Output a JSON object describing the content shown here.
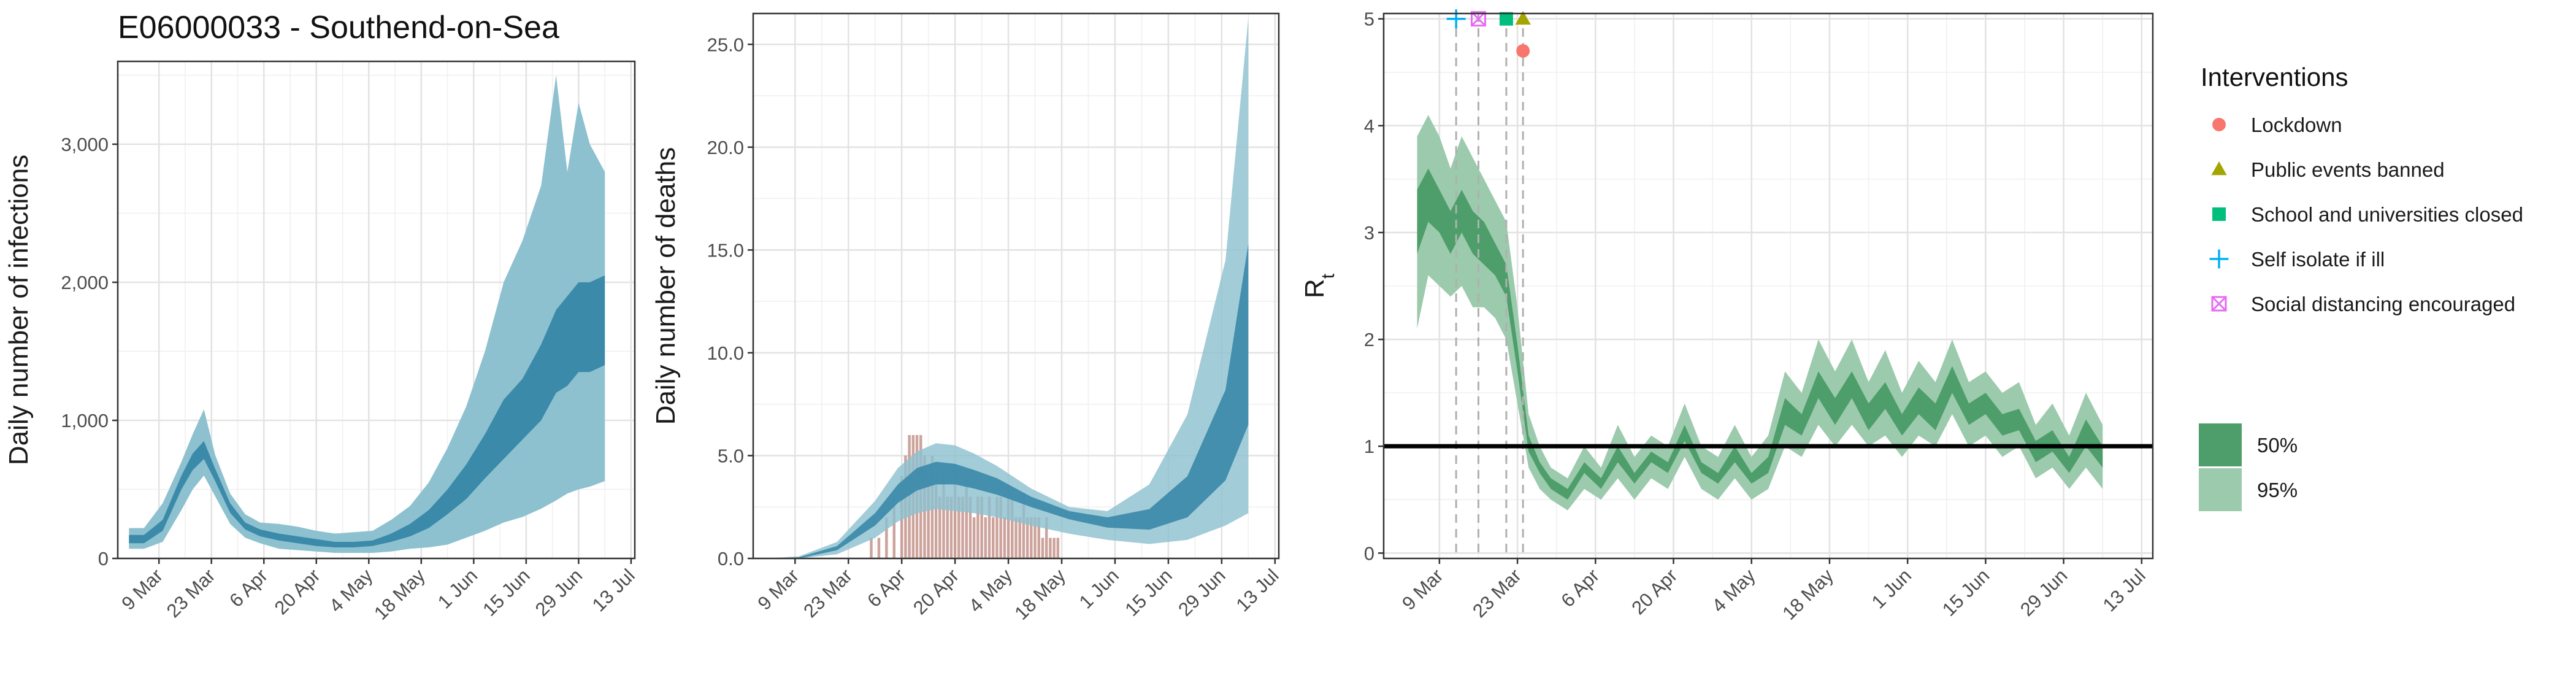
{
  "figure": {
    "title": "E06000033 - Southend-on-Sea"
  },
  "colors": {
    "infection_band_95": "#8dc1d0",
    "infection_band_50": "#3b8aa9",
    "deaths_band_95": "#8dc1d0",
    "deaths_band_50": "#3b8aa9",
    "observed_bars": "#c4938b",
    "rt_band_95": "#9ccaac",
    "rt_band_50": "#4d9e6a",
    "lockdown": "#f8766d",
    "public_events": "#a3a500",
    "schools": "#00bf7d",
    "self_isolate": "#00b0f6",
    "social_distancing": "#e76bf3"
  },
  "chart_data": [
    {
      "type": "area",
      "title": "E06000033 - Southend-on-Sea",
      "xlabel": "",
      "ylabel": "Daily number of infections",
      "x_tick_labels": [
        "9 Mar",
        "23 Mar",
        "6 Apr",
        "20 Apr",
        "4 May",
        "18 May",
        "1 Jun",
        "15 Jun",
        "29 Jun",
        "13 Jul"
      ],
      "x_range": [
        "2020-02-27",
        "2020-07-14"
      ],
      "ylim": [
        0,
        3600
      ],
      "y_ticks": [
        0,
        1000,
        2000,
        3000
      ],
      "y_tick_labels": [
        "0",
        "1,000",
        "2,000",
        "3,000"
      ],
      "grid": true,
      "series": [
        {
          "name": "95%",
          "x": [
            "2020-03-01",
            "2020-03-05",
            "2020-03-10",
            "2020-03-15",
            "2020-03-18",
            "2020-03-21",
            "2020-03-24",
            "2020-03-28",
            "2020-04-01",
            "2020-04-05",
            "2020-04-10",
            "2020-04-15",
            "2020-04-20",
            "2020-04-25",
            "2020-04-30",
            "2020-05-05",
            "2020-05-10",
            "2020-05-15",
            "2020-05-20",
            "2020-05-25",
            "2020-05-30",
            "2020-06-04",
            "2020-06-09",
            "2020-06-14",
            "2020-06-19",
            "2020-06-23",
            "2020-06-26",
            "2020-06-29",
            "2020-07-02",
            "2020-07-06"
          ],
          "lower": [
            70,
            70,
            120,
            350,
            500,
            600,
            450,
            250,
            150,
            110,
            70,
            60,
            50,
            40,
            40,
            40,
            50,
            70,
            80,
            100,
            150,
            200,
            260,
            300,
            360,
            420,
            470,
            500,
            520,
            560
          ],
          "upper": [
            220,
            220,
            400,
            700,
            900,
            1080,
            750,
            470,
            320,
            260,
            250,
            230,
            200,
            180,
            190,
            200,
            280,
            380,
            550,
            800,
            1100,
            1500,
            2000,
            2300,
            2700,
            3500,
            2800,
            3300,
            3000,
            2800
          ]
        },
        {
          "name": "50%",
          "x": [
            "2020-03-01",
            "2020-03-05",
            "2020-03-10",
            "2020-03-15",
            "2020-03-18",
            "2020-03-21",
            "2020-03-24",
            "2020-03-28",
            "2020-04-01",
            "2020-04-05",
            "2020-04-10",
            "2020-04-15",
            "2020-04-20",
            "2020-04-25",
            "2020-04-30",
            "2020-05-05",
            "2020-05-10",
            "2020-05-15",
            "2020-05-20",
            "2020-05-25",
            "2020-05-30",
            "2020-06-04",
            "2020-06-09",
            "2020-06-14",
            "2020-06-19",
            "2020-06-23",
            "2020-06-26",
            "2020-06-29",
            "2020-07-02",
            "2020-07-06"
          ],
          "lower": [
            110,
            110,
            200,
            500,
            640,
            720,
            560,
            330,
            210,
            160,
            130,
            110,
            90,
            80,
            80,
            90,
            120,
            160,
            220,
            320,
            430,
            580,
            720,
            860,
            1000,
            1200,
            1250,
            1350,
            1350,
            1400
          ],
          "upper": [
            170,
            170,
            280,
            600,
            760,
            850,
            650,
            400,
            260,
            210,
            180,
            160,
            140,
            120,
            120,
            130,
            180,
            250,
            350,
            500,
            680,
            900,
            1150,
            1300,
            1550,
            1800,
            1900,
            2000,
            2000,
            2050
          ]
        }
      ]
    },
    {
      "type": "area",
      "title": "",
      "xlabel": "",
      "ylabel": "Daily number of deaths",
      "x_tick_labels": [
        "9 Mar",
        "23 Mar",
        "6 Apr",
        "20 Apr",
        "4 May",
        "18 May",
        "1 Jun",
        "15 Jun",
        "29 Jun",
        "13 Jul"
      ],
      "x_range": [
        "2020-02-27",
        "2020-07-14"
      ],
      "ylim": [
        0,
        26.5
      ],
      "y_ticks": [
        0,
        5,
        10,
        15,
        20,
        25
      ],
      "y_tick_labels": [
        "0.0",
        "5.0",
        "10.0",
        "15.0",
        "20.0",
        "25.0"
      ],
      "grid": true,
      "series": [
        {
          "name": "95%",
          "x": [
            "2020-03-01",
            "2020-03-10",
            "2020-03-20",
            "2020-03-30",
            "2020-04-05",
            "2020-04-10",
            "2020-04-15",
            "2020-04-20",
            "2020-04-25",
            "2020-05-01",
            "2020-05-10",
            "2020-05-20",
            "2020-05-30",
            "2020-06-10",
            "2020-06-20",
            "2020-06-30",
            "2020-07-06"
          ],
          "lower": [
            0,
            0,
            0.2,
            1.0,
            1.8,
            2.2,
            2.4,
            2.3,
            2.2,
            2.0,
            1.6,
            1.2,
            0.9,
            0.7,
            0.9,
            1.6,
            2.2
          ],
          "upper": [
            0,
            0.1,
            0.8,
            2.8,
            4.4,
            5.2,
            5.6,
            5.5,
            5.1,
            4.5,
            3.4,
            2.5,
            2.3,
            3.6,
            7.0,
            14.5,
            26.3
          ]
        },
        {
          "name": "50%",
          "x": [
            "2020-03-01",
            "2020-03-10",
            "2020-03-20",
            "2020-03-30",
            "2020-04-05",
            "2020-04-10",
            "2020-04-15",
            "2020-04-20",
            "2020-04-25",
            "2020-05-01",
            "2020-05-10",
            "2020-05-20",
            "2020-05-30",
            "2020-06-10",
            "2020-06-20",
            "2020-06-30",
            "2020-07-06"
          ],
          "lower": [
            0,
            0,
            0.4,
            1.6,
            2.7,
            3.3,
            3.6,
            3.6,
            3.4,
            3.1,
            2.5,
            1.9,
            1.5,
            1.4,
            2.0,
            3.8,
            6.5
          ],
          "upper": [
            0,
            0.05,
            0.6,
            2.2,
            3.6,
            4.4,
            4.7,
            4.6,
            4.3,
            3.9,
            3.0,
            2.3,
            2.0,
            2.4,
            4.0,
            8.2,
            15.3
          ]
        }
      ],
      "bars": {
        "name": "observed deaths",
        "x": [
          "2020-03-29",
          "2020-03-31",
          "2020-04-02",
          "2020-04-04",
          "2020-04-06",
          "2020-04-07",
          "2020-04-08",
          "2020-04-09",
          "2020-04-10",
          "2020-04-11",
          "2020-04-12",
          "2020-04-13",
          "2020-04-14",
          "2020-04-15",
          "2020-04-16",
          "2020-04-17",
          "2020-04-18",
          "2020-04-19",
          "2020-04-20",
          "2020-04-21",
          "2020-04-22",
          "2020-04-23",
          "2020-04-24",
          "2020-04-25",
          "2020-04-26",
          "2020-04-27",
          "2020-04-28",
          "2020-04-29",
          "2020-04-30",
          "2020-05-01",
          "2020-05-02",
          "2020-05-03",
          "2020-05-04",
          "2020-05-05",
          "2020-05-06",
          "2020-05-07",
          "2020-05-08",
          "2020-05-09",
          "2020-05-10",
          "2020-05-11",
          "2020-05-12",
          "2020-05-13",
          "2020-05-14",
          "2020-05-15",
          "2020-05-16",
          "2020-05-17"
        ],
        "values": [
          1,
          1,
          2,
          3,
          4,
          5,
          6,
          6,
          6,
          6,
          5,
          4,
          5,
          4,
          3,
          4,
          3,
          3,
          4,
          3,
          3,
          4,
          3,
          2,
          3,
          3,
          2,
          3,
          2,
          3,
          3,
          2,
          3,
          3,
          2,
          2,
          3,
          2,
          2,
          2,
          2,
          1,
          2,
          1,
          1,
          1
        ]
      }
    },
    {
      "type": "area",
      "title": "",
      "xlabel": "",
      "ylabel": "R",
      "ylabel_subscript": "t",
      "x_tick_labels": [
        "9 Mar",
        "23 Mar",
        "6 Apr",
        "20 Apr",
        "4 May",
        "18 May",
        "1 Jun",
        "15 Jun",
        "29 Jun",
        "13 Jul"
      ],
      "x_range": [
        "2020-02-28",
        "2020-07-15"
      ],
      "ylim": [
        -0.05,
        5.05
      ],
      "y_ticks": [
        0,
        1,
        2,
        3,
        4,
        5
      ],
      "y_tick_labels": [
        "0",
        "1",
        "2",
        "3",
        "4",
        "5"
      ],
      "grid": true,
      "reference_line": 1,
      "series": [
        {
          "name": "95%",
          "x": [
            "2020-03-05",
            "2020-03-07",
            "2020-03-09",
            "2020-03-11",
            "2020-03-13",
            "2020-03-15",
            "2020-03-17",
            "2020-03-19",
            "2020-03-21",
            "2020-03-23",
            "2020-03-25",
            "2020-03-27",
            "2020-03-29",
            "2020-04-01",
            "2020-04-04",
            "2020-04-07",
            "2020-04-10",
            "2020-04-13",
            "2020-04-16",
            "2020-04-19",
            "2020-04-22",
            "2020-04-25",
            "2020-04-28",
            "2020-05-01",
            "2020-05-04",
            "2020-05-07",
            "2020-05-10",
            "2020-05-13",
            "2020-05-16",
            "2020-05-19",
            "2020-05-22",
            "2020-05-25",
            "2020-05-28",
            "2020-05-31",
            "2020-06-03",
            "2020-06-06",
            "2020-06-09",
            "2020-06-12",
            "2020-06-15",
            "2020-06-18",
            "2020-06-21",
            "2020-06-24",
            "2020-06-27",
            "2020-06-30",
            "2020-07-03",
            "2020-07-06"
          ],
          "lower": [
            2.1,
            2.6,
            2.5,
            2.4,
            2.5,
            2.3,
            2.3,
            2.2,
            2.0,
            1.4,
            0.8,
            0.6,
            0.5,
            0.4,
            0.6,
            0.5,
            0.7,
            0.5,
            0.7,
            0.6,
            0.9,
            0.6,
            0.5,
            0.7,
            0.5,
            0.6,
            1.0,
            0.9,
            1.2,
            1.0,
            1.2,
            1.0,
            1.1,
            0.9,
            1.1,
            1.0,
            1.3,
            1.0,
            1.1,
            0.9,
            1.0,
            0.7,
            0.8,
            0.6,
            0.8,
            0.6
          ],
          "upper": [
            3.9,
            4.1,
            3.9,
            3.6,
            3.9,
            3.7,
            3.5,
            3.3,
            3.1,
            2.3,
            1.3,
            1.0,
            0.8,
            0.7,
            1.0,
            0.8,
            1.2,
            0.9,
            1.1,
            1.0,
            1.4,
            1.0,
            0.9,
            1.2,
            0.9,
            1.1,
            1.7,
            1.5,
            2.0,
            1.7,
            2.0,
            1.6,
            1.9,
            1.5,
            1.8,
            1.6,
            2.0,
            1.6,
            1.7,
            1.5,
            1.6,
            1.2,
            1.4,
            1.1,
            1.5,
            1.2
          ]
        },
        {
          "name": "50%",
          "x": [
            "2020-03-05",
            "2020-03-07",
            "2020-03-09",
            "2020-03-11",
            "2020-03-13",
            "2020-03-15",
            "2020-03-17",
            "2020-03-19",
            "2020-03-21",
            "2020-03-23",
            "2020-03-25",
            "2020-03-27",
            "2020-03-29",
            "2020-04-01",
            "2020-04-04",
            "2020-04-07",
            "2020-04-10",
            "2020-04-13",
            "2020-04-16",
            "2020-04-19",
            "2020-04-22",
            "2020-04-25",
            "2020-04-28",
            "2020-05-01",
            "2020-05-04",
            "2020-05-07",
            "2020-05-10",
            "2020-05-13",
            "2020-05-16",
            "2020-05-19",
            "2020-05-22",
            "2020-05-25",
            "2020-05-28",
            "2020-05-31",
            "2020-06-03",
            "2020-06-06",
            "2020-06-09",
            "2020-06-12",
            "2020-06-15",
            "2020-06-18",
            "2020-06-21",
            "2020-06-24",
            "2020-06-27",
            "2020-06-30",
            "2020-07-03",
            "2020-07-06"
          ],
          "lower": [
            2.8,
            3.1,
            3.0,
            2.8,
            3.0,
            2.8,
            2.7,
            2.6,
            2.4,
            1.7,
            0.95,
            0.75,
            0.6,
            0.5,
            0.75,
            0.6,
            0.85,
            0.65,
            0.85,
            0.75,
            1.05,
            0.75,
            0.65,
            0.85,
            0.65,
            0.75,
            1.2,
            1.1,
            1.45,
            1.2,
            1.45,
            1.15,
            1.35,
            1.1,
            1.3,
            1.15,
            1.5,
            1.2,
            1.3,
            1.1,
            1.15,
            0.85,
            0.95,
            0.75,
            1.0,
            0.8
          ],
          "upper": [
            3.4,
            3.6,
            3.4,
            3.2,
            3.4,
            3.2,
            3.1,
            2.9,
            2.7,
            1.95,
            1.1,
            0.85,
            0.7,
            0.6,
            0.85,
            0.7,
            1.0,
            0.75,
            0.95,
            0.85,
            1.2,
            0.85,
            0.75,
            1.0,
            0.75,
            0.9,
            1.45,
            1.3,
            1.7,
            1.45,
            1.7,
            1.4,
            1.6,
            1.3,
            1.55,
            1.4,
            1.75,
            1.4,
            1.5,
            1.3,
            1.35,
            1.05,
            1.15,
            0.9,
            1.25,
            1.0
          ]
        }
      ],
      "interventions": [
        {
          "name": "Self isolate if ill",
          "date": "2020-03-12",
          "y": 5.0,
          "marker": "plus"
        },
        {
          "name": "Social distancing encouraged",
          "date": "2020-03-16",
          "y": 5.0,
          "marker": "boxx"
        },
        {
          "name": "School and universities closed",
          "date": "2020-03-21",
          "y": 5.0,
          "marker": "square"
        },
        {
          "name": "Public events banned",
          "date": "2020-03-24",
          "y": 5.0,
          "marker": "triangle"
        },
        {
          "name": "Lockdown",
          "date": "2020-03-24",
          "y": 4.7,
          "marker": "circle"
        }
      ]
    }
  ],
  "legend": {
    "interventions_title": "Interventions",
    "interventions": [
      {
        "label": "Lockdown",
        "marker": "circle",
        "color_key": "lockdown"
      },
      {
        "label": "Public events banned",
        "marker": "triangle",
        "color_key": "public_events"
      },
      {
        "label": "School and universities closed",
        "marker": "square",
        "color_key": "schools"
      },
      {
        "label": "Self isolate if ill",
        "marker": "plus",
        "color_key": "self_isolate"
      },
      {
        "label": "Social distancing encouraged",
        "marker": "boxx",
        "color_key": "social_distancing"
      }
    ],
    "bands": [
      {
        "label": "50%",
        "color_key": "rt_band_50"
      },
      {
        "label": "95%",
        "color_key": "rt_band_95"
      }
    ]
  }
}
